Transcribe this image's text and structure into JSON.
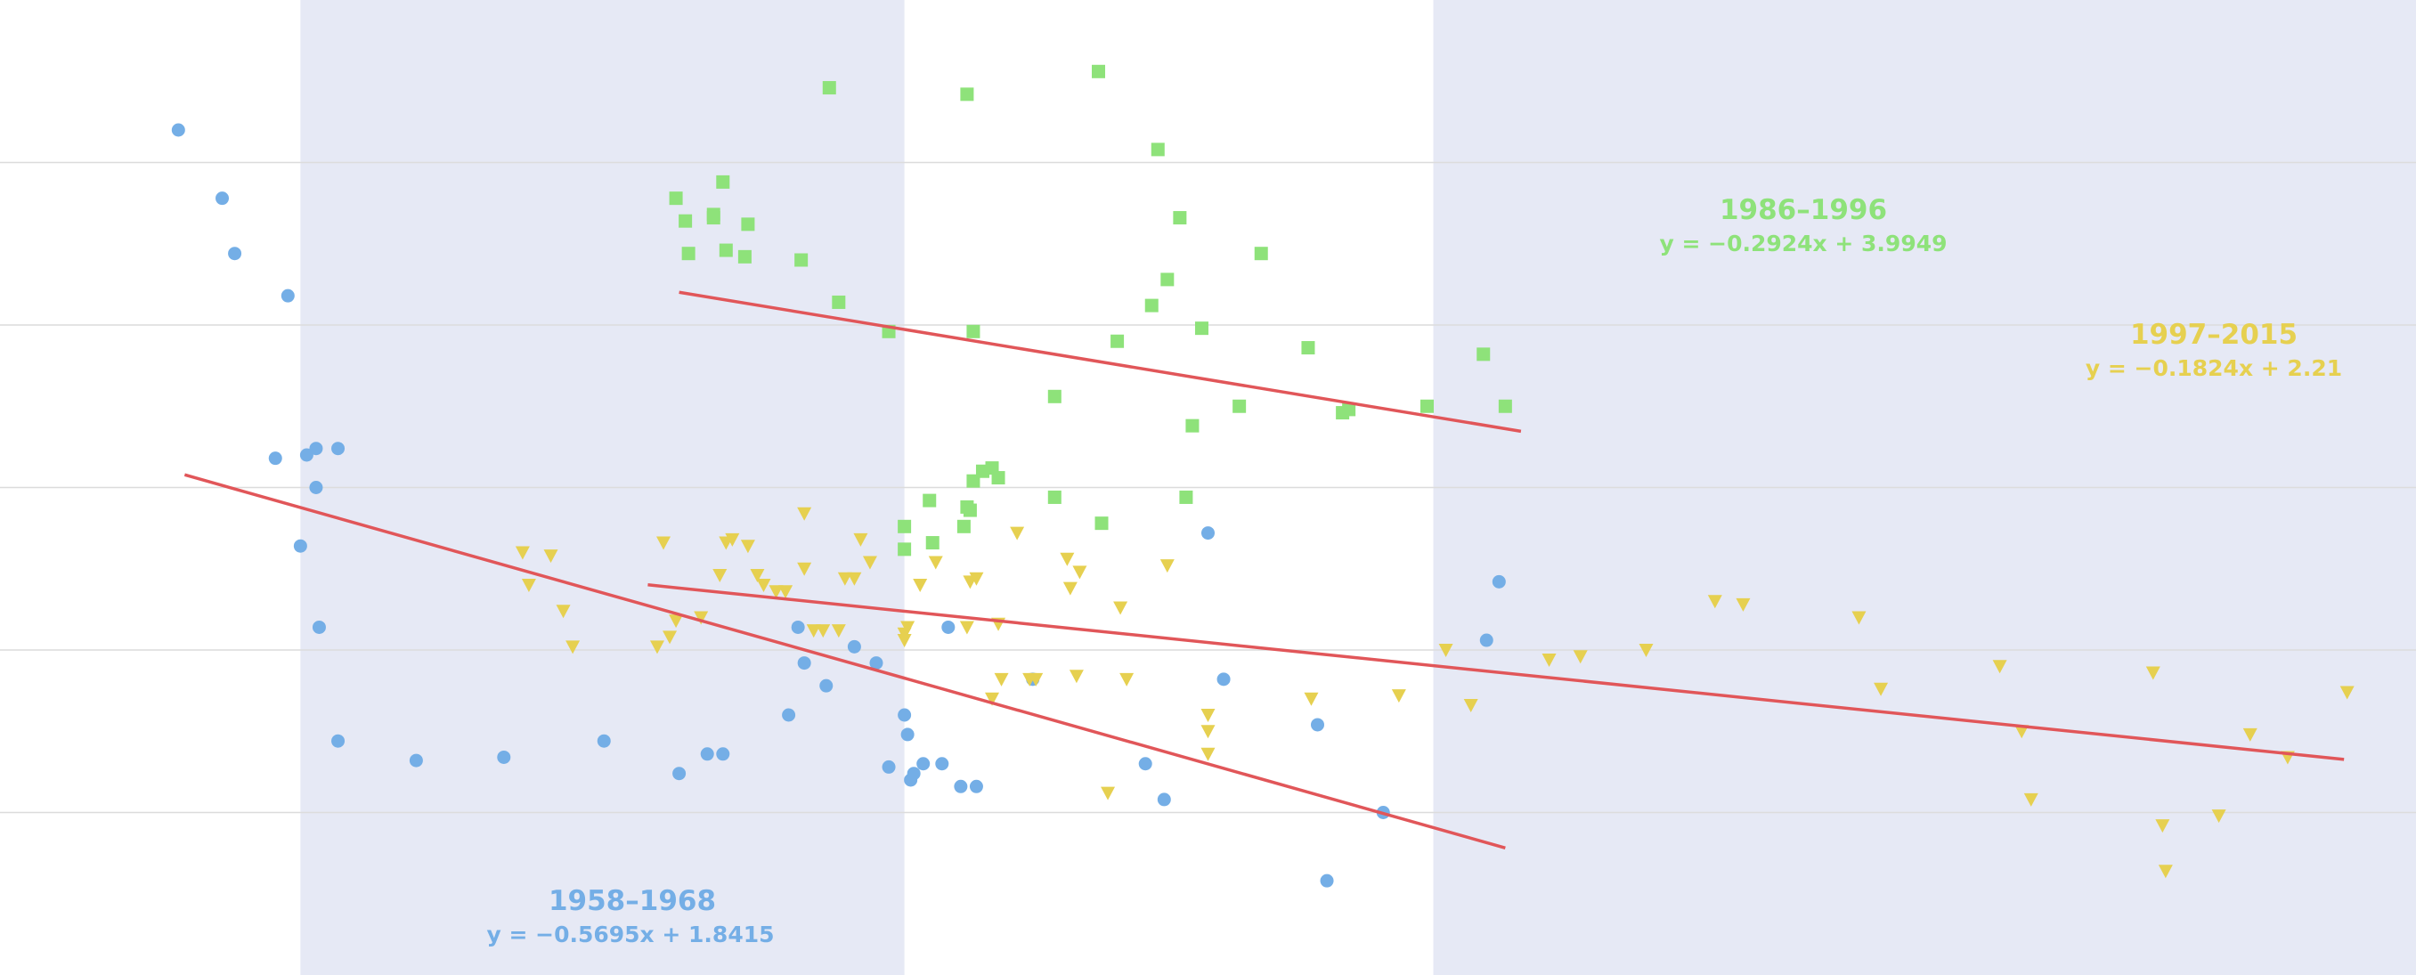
{
  "chart_data": {
    "type": "scatter",
    "title": "",
    "xlabel": "",
    "ylabel": "",
    "xlim": [
      -3.36,
      4.36
    ],
    "ylim": [
      -1.0,
      2.0
    ],
    "grid": {
      "horizontal": true,
      "vertical": false,
      "y_ticks": [
        -0.5,
        0,
        0.5,
        1,
        1.5
      ]
    },
    "shaded_bands": [
      {
        "x_range": [
          -2.4,
          -0.47
        ],
        "color": "#e6e9f5"
      },
      {
        "x_range": [
          1.22,
          4.36
        ],
        "color": "#e6e9f5"
      }
    ],
    "series": [
      {
        "name": "1958–1968",
        "marker": "circle",
        "color": "#74aee6",
        "points": [
          [
            -2.79,
            1.6
          ],
          [
            -2.65,
            1.39
          ],
          [
            -2.61,
            1.22
          ],
          [
            -2.44,
            1.09
          ],
          [
            -2.48,
            0.59
          ],
          [
            -2.38,
            0.6
          ],
          [
            -2.35,
            0.62
          ],
          [
            -2.28,
            0.62
          ],
          [
            -2.35,
            0.5
          ],
          [
            -2.4,
            0.32
          ],
          [
            -2.34,
            0.07
          ],
          [
            -2.28,
            -0.28
          ],
          [
            -2.03,
            -0.34
          ],
          [
            -1.75,
            -0.33
          ],
          [
            -1.43,
            -0.28
          ],
          [
            -1.19,
            -0.38
          ],
          [
            -1.1,
            -0.32
          ],
          [
            -1.05,
            -0.32
          ],
          [
            -0.84,
            -0.2
          ],
          [
            -0.81,
            0.07
          ],
          [
            -0.79,
            -0.04
          ],
          [
            -0.72,
            -0.11
          ],
          [
            -0.63,
            0.01
          ],
          [
            -0.56,
            -0.04
          ],
          [
            -0.52,
            -0.36
          ],
          [
            -0.47,
            -0.2
          ],
          [
            -0.46,
            -0.26
          ],
          [
            -0.45,
            -0.4
          ],
          [
            -0.44,
            -0.38
          ],
          [
            -0.41,
            -0.35
          ],
          [
            -0.35,
            -0.35
          ],
          [
            -0.33,
            0.07
          ],
          [
            -0.29,
            -0.42
          ],
          [
            -0.24,
            -0.42
          ],
          [
            -0.06,
            -0.09
          ],
          [
            0.3,
            -0.35
          ],
          [
            0.36,
            -0.46
          ],
          [
            0.5,
            0.36
          ],
          [
            0.55,
            -0.09
          ],
          [
            0.85,
            -0.23
          ],
          [
            0.88,
            -0.71
          ],
          [
            1.06,
            -0.5
          ],
          [
            1.39,
            0.03
          ],
          [
            1.43,
            0.21
          ]
        ],
        "trendline": {
          "x_range": [
            -2.77,
            1.45
          ],
          "slope": -0.5695,
          "intercept": 1.8415
        }
      },
      {
        "name": "1986–1996",
        "marker": "square",
        "color": "#8ee27a",
        "points": [
          [
            -1.2,
            1.39
          ],
          [
            -1.17,
            1.32
          ],
          [
            -1.16,
            1.22
          ],
          [
            -1.08,
            1.34
          ],
          [
            -1.08,
            1.33
          ],
          [
            -1.05,
            1.44
          ],
          [
            -1.04,
            1.23
          ],
          [
            -0.98,
            1.21
          ],
          [
            -0.97,
            1.31
          ],
          [
            -0.8,
            1.2
          ],
          [
            -0.71,
            1.73
          ],
          [
            -0.68,
            1.07
          ],
          [
            -0.52,
            0.98
          ],
          [
            -0.47,
            0.31
          ],
          [
            -0.47,
            0.38
          ],
          [
            -0.39,
            0.46
          ],
          [
            -0.38,
            0.33
          ],
          [
            -0.28,
            0.38
          ],
          [
            -0.27,
            0.44
          ],
          [
            -0.27,
            1.71
          ],
          [
            -0.26,
            0.43
          ],
          [
            -0.25,
            0.52
          ],
          [
            -0.25,
            0.98
          ],
          [
            -0.22,
            0.55
          ],
          [
            -0.19,
            0.56
          ],
          [
            -0.17,
            0.53
          ],
          [
            0.01,
            0.78
          ],
          [
            0.01,
            0.47
          ],
          [
            0.16,
            0.39
          ],
          [
            0.15,
            1.78
          ],
          [
            0.21,
            0.95
          ],
          [
            0.32,
            1.06
          ],
          [
            0.34,
            1.54
          ],
          [
            0.37,
            1.14
          ],
          [
            0.41,
            1.33
          ],
          [
            0.43,
            0.47
          ],
          [
            0.45,
            0.69
          ],
          [
            0.48,
            0.99
          ],
          [
            0.6,
            0.75
          ],
          [
            0.67,
            1.22
          ],
          [
            0.82,
            0.93
          ],
          [
            0.93,
            0.73
          ],
          [
            0.95,
            0.74
          ],
          [
            1.2,
            0.75
          ],
          [
            1.38,
            0.91
          ],
          [
            1.45,
            0.75
          ]
        ],
        "trendline": {
          "x_range": [
            -1.19,
            1.5
          ],
          "slope": -0.2924,
          "intercept": 3.9949
        }
      },
      {
        "name": "1997–2015",
        "marker": "triangle-down",
        "color": "#e6d050",
        "points": [
          [
            -1.69,
            0.3
          ],
          [
            -1.67,
            0.2
          ],
          [
            -1.6,
            0.29
          ],
          [
            -1.56,
            0.12
          ],
          [
            -1.53,
            0.01
          ],
          [
            -1.26,
            0.01
          ],
          [
            -1.24,
            0.33
          ],
          [
            -1.22,
            0.04
          ],
          [
            -1.2,
            0.09
          ],
          [
            -1.12,
            0.1
          ],
          [
            -1.06,
            0.23
          ],
          [
            -1.04,
            0.33
          ],
          [
            -1.02,
            0.34
          ],
          [
            -0.97,
            0.32
          ],
          [
            -0.94,
            0.23
          ],
          [
            -0.92,
            0.2
          ],
          [
            -0.88,
            0.18
          ],
          [
            -0.85,
            0.18
          ],
          [
            -0.79,
            0.42
          ],
          [
            -0.79,
            0.25
          ],
          [
            -0.76,
            0.06
          ],
          [
            -0.73,
            0.06
          ],
          [
            -0.68,
            0.06
          ],
          [
            -0.66,
            0.22
          ],
          [
            -0.63,
            0.22
          ],
          [
            -0.61,
            0.34
          ],
          [
            -0.58,
            0.27
          ],
          [
            -0.47,
            0.05
          ],
          [
            -0.47,
            0.03
          ],
          [
            -0.46,
            0.07
          ],
          [
            -0.42,
            0.2
          ],
          [
            -0.37,
            0.27
          ],
          [
            -0.27,
            0.07
          ],
          [
            -0.26,
            0.21
          ],
          [
            -0.24,
            0.22
          ],
          [
            -0.19,
            -0.15
          ],
          [
            -0.17,
            0.08
          ],
          [
            -0.16,
            -0.09
          ],
          [
            -0.11,
            0.36
          ],
          [
            -0.07,
            -0.09
          ],
          [
            -0.05,
            -0.09
          ],
          [
            0.05,
            0.28
          ],
          [
            0.06,
            0.19
          ],
          [
            0.08,
            -0.08
          ],
          [
            0.09,
            0.24
          ],
          [
            0.18,
            -0.44
          ],
          [
            0.22,
            0.13
          ],
          [
            0.24,
            -0.09
          ],
          [
            0.37,
            0.26
          ],
          [
            0.5,
            -0.2
          ],
          [
            0.5,
            -0.25
          ],
          [
            0.5,
            -0.32
          ],
          [
            0.83,
            -0.15
          ],
          [
            1.11,
            -0.14
          ],
          [
            1.26,
            0.0
          ],
          [
            1.34,
            -0.17
          ],
          [
            1.59,
            -0.03
          ],
          [
            1.69,
            -0.02
          ],
          [
            1.9,
            0.0
          ],
          [
            2.12,
            0.15
          ],
          [
            2.21,
            0.14
          ],
          [
            2.58,
            0.1
          ],
          [
            2.65,
            -0.12
          ],
          [
            3.03,
            -0.05
          ],
          [
            3.1,
            -0.25
          ],
          [
            3.13,
            -0.46
          ],
          [
            3.52,
            -0.07
          ],
          [
            3.55,
            -0.54
          ],
          [
            3.56,
            -0.68
          ],
          [
            3.73,
            -0.51
          ],
          [
            3.83,
            -0.26
          ],
          [
            3.95,
            -0.33
          ],
          [
            4.14,
            -0.13
          ]
        ],
        "trendline": {
          "x_range": [
            -1.29,
            4.13
          ],
          "slope": -0.1824,
          "intercept": 2.21
        }
      }
    ],
    "annotations": [
      {
        "text": "1958–1968",
        "equation": "y = −0.5695x + 1.8415",
        "color": "#74aee6"
      },
      {
        "text": "1986–1996",
        "equation": "y = −0.2924x + 3.9949",
        "color": "#8ee27a"
      },
      {
        "text": "1997–2015",
        "equation": "y = −0.1824x + 2.21",
        "color": "#e6d050"
      }
    ],
    "trendline_color": "#e15659"
  }
}
